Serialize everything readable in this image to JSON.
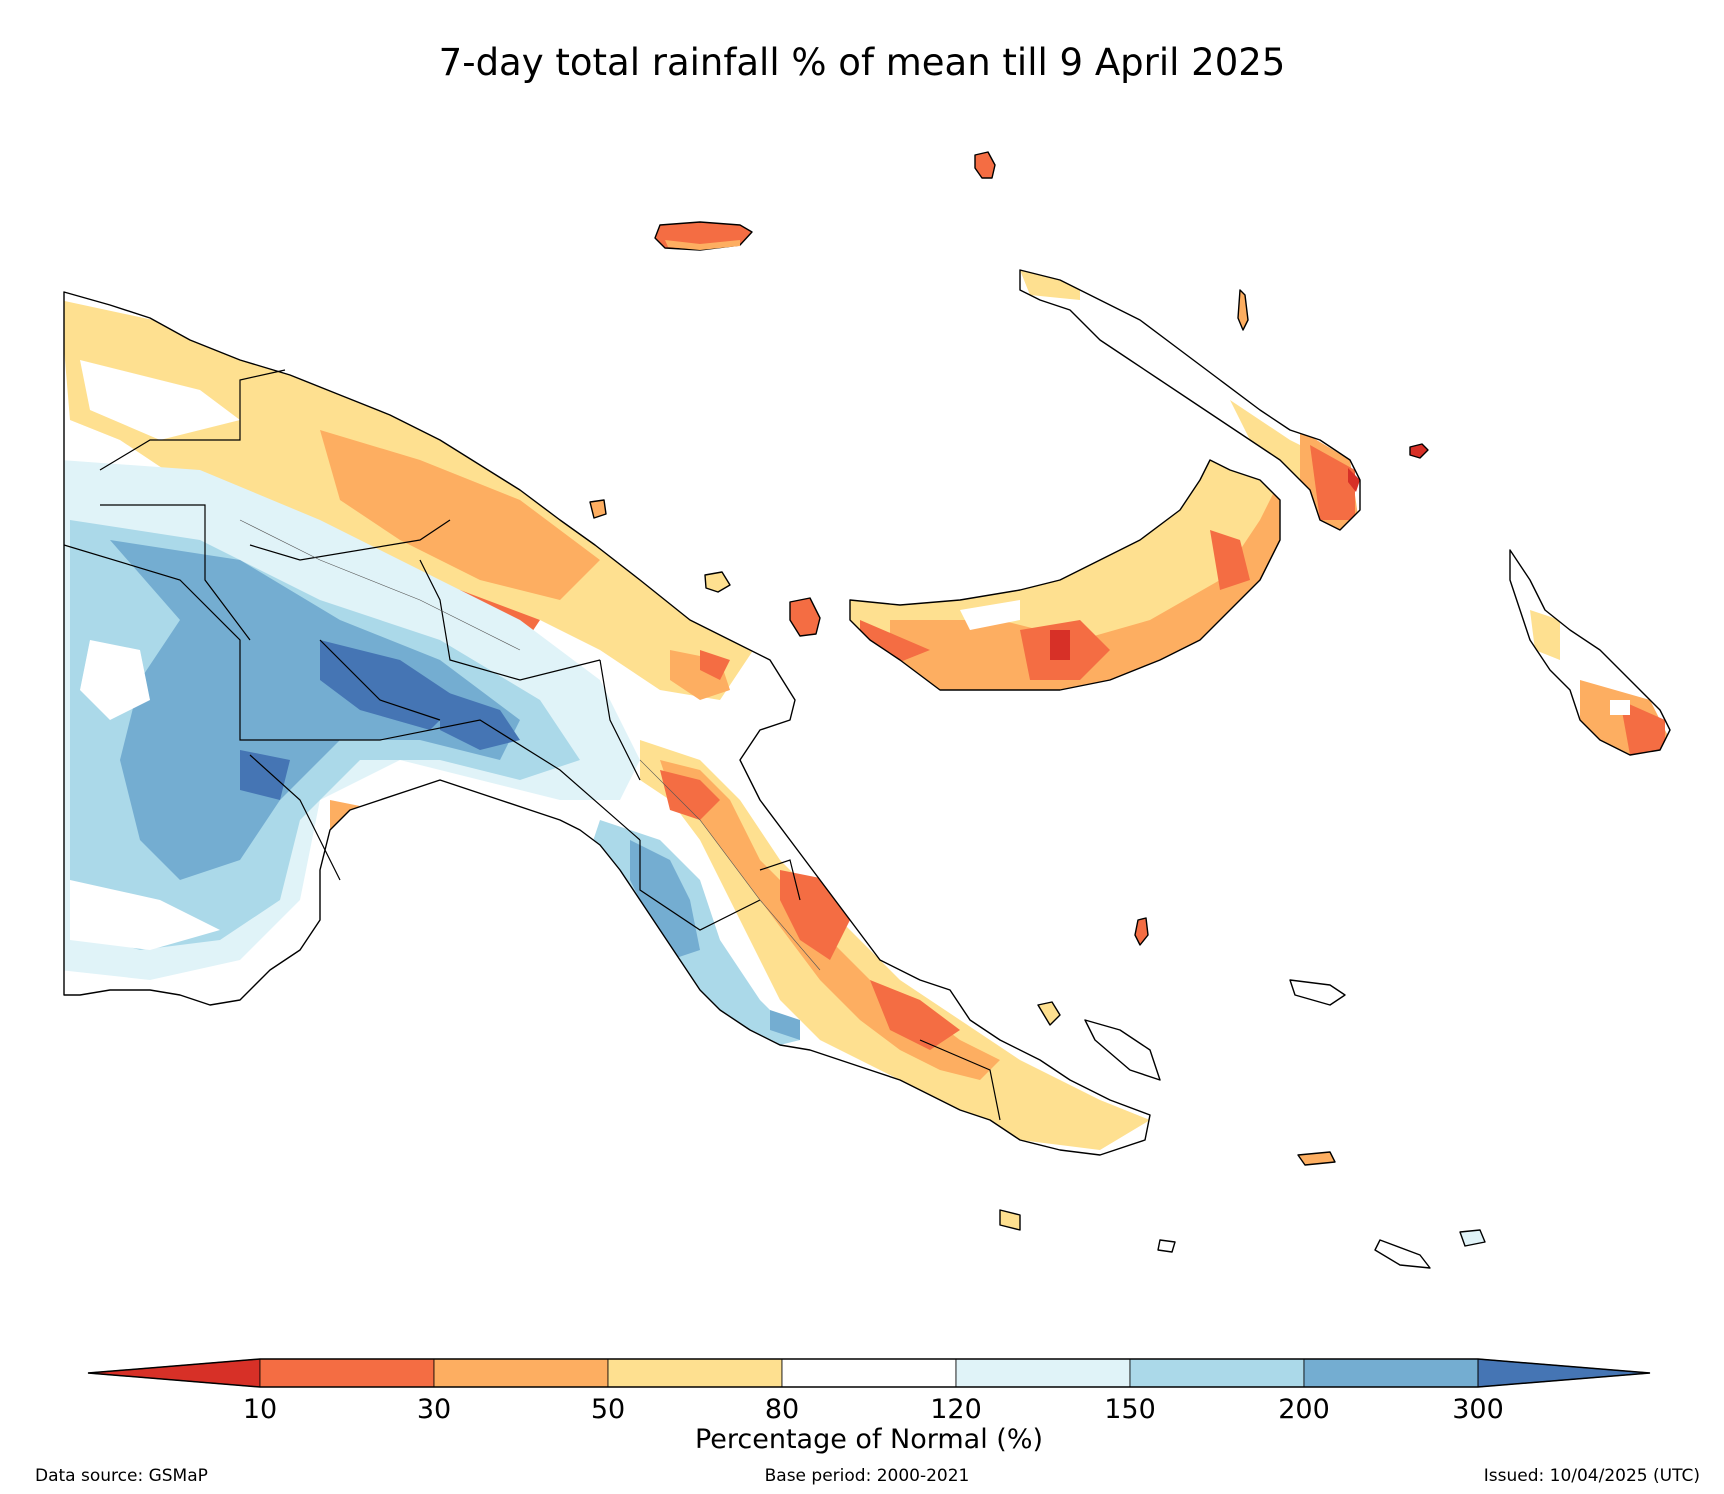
{
  "title": "7-day total rainfall % of mean till 9 April 2025",
  "colorbar": {
    "label": "Percentage of Normal (%)",
    "ticks": [
      "10",
      "30",
      "50",
      "80",
      "120",
      "150",
      "200",
      "300"
    ],
    "colors": {
      "below_10": "#d73027",
      "10_30": "#f46d43",
      "30_50": "#fdae61",
      "50_80": "#fee090",
      "80_120": "#ffffff",
      "120_150": "#e0f3f8",
      "150_200": "#abd9e9",
      "200_300": "#74add1",
      "above_300": "#4575b4"
    }
  },
  "footer": {
    "source": "Data source: GSMaP",
    "base_period": "Base period: 2000-2021",
    "issued": "Issued: 10/04/2025 (UTC)"
  }
}
